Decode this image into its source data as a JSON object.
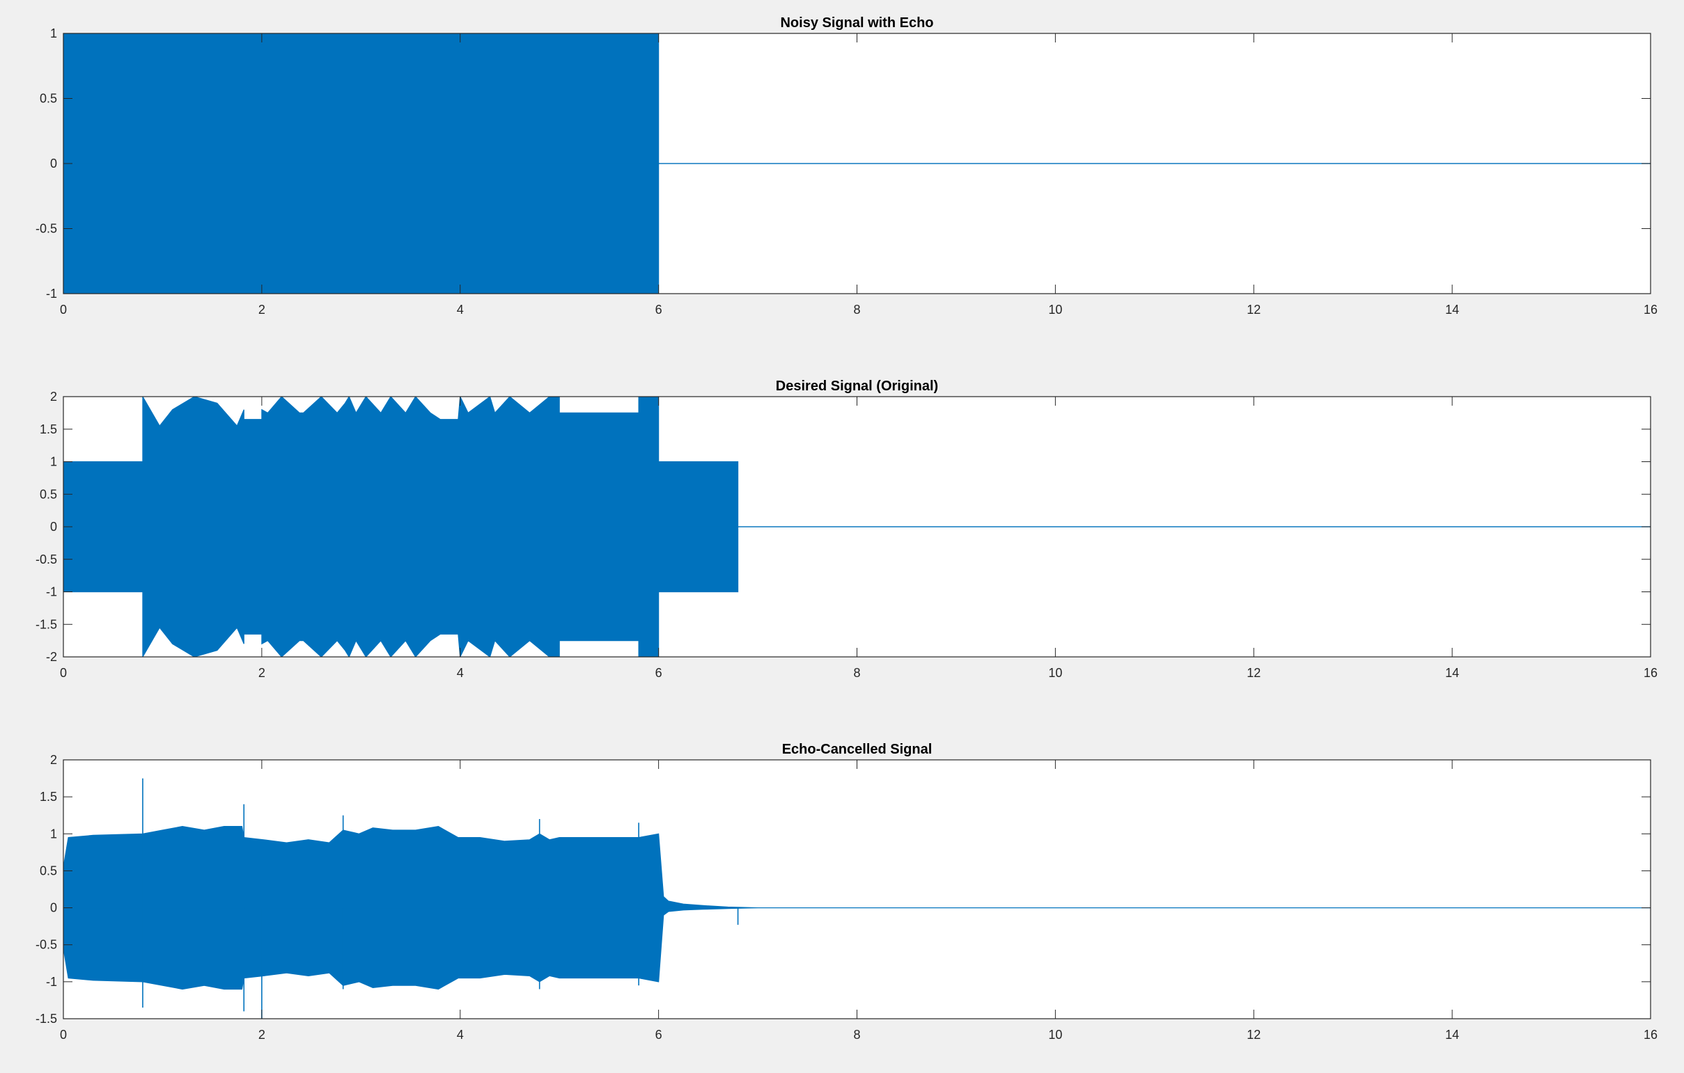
{
  "figure": {
    "background": "#f0f0f0",
    "axes_background": "#ffffff",
    "axes_color": "#262626",
    "line_color": "#0072bd"
  },
  "chart_data": [
    {
      "type": "line",
      "title": "Noisy Signal with Echo",
      "xlabel": "",
      "ylabel": "",
      "xlim": [
        0,
        16
      ],
      "ylim": [
        -1,
        1
      ],
      "xticks": [
        0,
        2,
        4,
        6,
        8,
        10,
        12,
        14,
        16
      ],
      "yticks": [
        -1,
        -0.5,
        0,
        0.5,
        1
      ],
      "xtick_labels": [
        "0",
        "2",
        "4",
        "6",
        "8",
        "10",
        "12",
        "14",
        "16"
      ],
      "ytick_labels": [
        "-1",
        "-0.5",
        "0",
        "0.5",
        "1"
      ],
      "grid": false,
      "series": [
        {
          "color": "#0072bd",
          "envelope": {
            "x": [
              0,
              6,
              6,
              16
            ],
            "upper": [
              1,
              1,
              0,
              0
            ],
            "lower": [
              -1,
              -1,
              0,
              0
            ]
          }
        }
      ]
    },
    {
      "type": "line",
      "title": "Desired Signal (Original)",
      "xlabel": "",
      "ylabel": "",
      "xlim": [
        0,
        16
      ],
      "ylim": [
        -2,
        2
      ],
      "xticks": [
        0,
        2,
        4,
        6,
        8,
        10,
        12,
        14,
        16
      ],
      "yticks": [
        -2,
        -1.5,
        -1,
        -0.5,
        0,
        0.5,
        1,
        1.5,
        2
      ],
      "xtick_labels": [
        "0",
        "2",
        "4",
        "6",
        "8",
        "10",
        "12",
        "14",
        "16"
      ],
      "ytick_labels": [
        "-2",
        "-1.5",
        "-1",
        "-0.5",
        "0",
        "0.5",
        "1",
        "1.5",
        "2"
      ],
      "grid": false,
      "series": [
        {
          "color": "#0072bd",
          "envelope": {
            "x": [
              0,
              0.8,
              0.8,
              0.97,
              1.1,
              1.32,
              1.55,
              1.75,
              1.82,
              1.82,
              2.0,
              2.0,
              2.06,
              2.2,
              2.38,
              2.42,
              2.6,
              2.76,
              2.84,
              2.88,
              2.95,
              3.05,
              3.2,
              3.3,
              3.45,
              3.55,
              3.7,
              3.8,
              3.82,
              3.98,
              4.0,
              4.08,
              4.3,
              4.35,
              4.5,
              4.7,
              4.9,
              5.0,
              5.0,
              5.8,
              5.8,
              6.0,
              6.0,
              6.8,
              6.8,
              16
            ],
            "upper": [
              1,
              1,
              2,
              1.55,
              1.8,
              2.0,
              1.9,
              1.55,
              1.8,
              1.65,
              1.65,
              1.8,
              1.75,
              2.0,
              1.75,
              1.75,
              2.0,
              1.75,
              1.9,
              2.0,
              1.75,
              2.0,
              1.75,
              2.0,
              1.75,
              2.0,
              1.75,
              1.65,
              1.65,
              1.65,
              2.0,
              1.75,
              2.0,
              1.75,
              2.0,
              1.75,
              2.0,
              2.0,
              1.75,
              1.75,
              2.0,
              2.0,
              1.0,
              1.0,
              0,
              0
            ],
            "lower": [
              -1,
              -1,
              -2,
              -1.55,
              -1.8,
              -2.0,
              -1.9,
              -1.55,
              -1.8,
              -1.65,
              -1.65,
              -1.8,
              -1.75,
              -2.0,
              -1.75,
              -1.75,
              -2.0,
              -1.75,
              -1.9,
              -2.0,
              -1.75,
              -2.0,
              -1.75,
              -2.0,
              -1.75,
              -2.0,
              -1.75,
              -1.65,
              -1.65,
              -1.65,
              -2.0,
              -1.75,
              -2.0,
              -1.75,
              -2.0,
              -1.75,
              -2.0,
              -2.0,
              -1.75,
              -1.75,
              -2.0,
              -2.0,
              -1.0,
              -1.0,
              0,
              0
            ]
          }
        }
      ]
    },
    {
      "type": "line",
      "title": "Echo-Cancelled Signal",
      "xlabel": "",
      "ylabel": "",
      "xlim": [
        0,
        16
      ],
      "ylim": [
        -1.5,
        2
      ],
      "xticks": [
        0,
        2,
        4,
        6,
        8,
        10,
        12,
        14,
        16
      ],
      "yticks": [
        -1.5,
        -1,
        -0.5,
        0,
        0.5,
        1,
        1.5,
        2
      ],
      "xtick_labels": [
        "0",
        "2",
        "4",
        "6",
        "8",
        "10",
        "12",
        "14",
        "16"
      ],
      "ytick_labels": [
        "-1.5",
        "-1",
        "-0.5",
        "0",
        "0.5",
        "1",
        "1.5",
        "2"
      ],
      "grid": false,
      "series": [
        {
          "color": "#0072bd",
          "envelope": {
            "x": [
              0,
              0.05,
              0.3,
              0.8,
              1.0,
              1.2,
              1.42,
              1.62,
              1.8,
              1.82,
              2.02,
              2.25,
              2.47,
              2.68,
              2.82,
              2.98,
              3.12,
              3.32,
              3.55,
              3.78,
              3.98,
              4.2,
              4.45,
              4.7,
              4.8,
              4.9,
              5.0,
              5.8,
              6.0,
              6.05,
              6.1,
              6.25,
              6.45,
              6.7,
              7.0,
              16
            ],
            "upper": [
              0.55,
              0.95,
              0.98,
              1.0,
              1.05,
              1.1,
              1.05,
              1.1,
              1.1,
              0.95,
              0.92,
              0.88,
              0.92,
              0.88,
              1.05,
              1.0,
              1.08,
              1.05,
              1.05,
              1.1,
              0.95,
              0.95,
              0.9,
              0.92,
              1.0,
              0.92,
              0.95,
              0.95,
              1.0,
              0.15,
              0.09,
              0.05,
              0.03,
              0.01,
              0,
              0
            ],
            "lower": [
              -0.55,
              -0.95,
              -0.98,
              -1.0,
              -1.05,
              -1.1,
              -1.05,
              -1.1,
              -1.1,
              -0.95,
              -0.92,
              -0.88,
              -0.92,
              -0.88,
              -1.05,
              -1.0,
              -1.08,
              -1.05,
              -1.05,
              -1.1,
              -0.95,
              -0.95,
              -0.9,
              -0.92,
              -1.0,
              -0.92,
              -0.95,
              -0.95,
              -1.0,
              -0.1,
              -0.05,
              -0.03,
              -0.02,
              -0.01,
              0,
              0
            ]
          },
          "spikes": [
            {
              "x": 0.8,
              "y": 1.75
            },
            {
              "x": 0.8,
              "y": -1.35
            },
            {
              "x": 1.82,
              "y": 1.4
            },
            {
              "x": 1.82,
              "y": -1.4
            },
            {
              "x": 2.0,
              "y": -1.5
            },
            {
              "x": 2.82,
              "y": 1.25
            },
            {
              "x": 2.82,
              "y": -1.1
            },
            {
              "x": 3.82,
              "y": 1.05
            },
            {
              "x": 4.8,
              "y": 1.2
            },
            {
              "x": 4.8,
              "y": -1.1
            },
            {
              "x": 5.8,
              "y": 1.15
            },
            {
              "x": 5.8,
              "y": -1.05
            },
            {
              "x": 6.8,
              "y": -0.23
            }
          ]
        }
      ]
    }
  ]
}
